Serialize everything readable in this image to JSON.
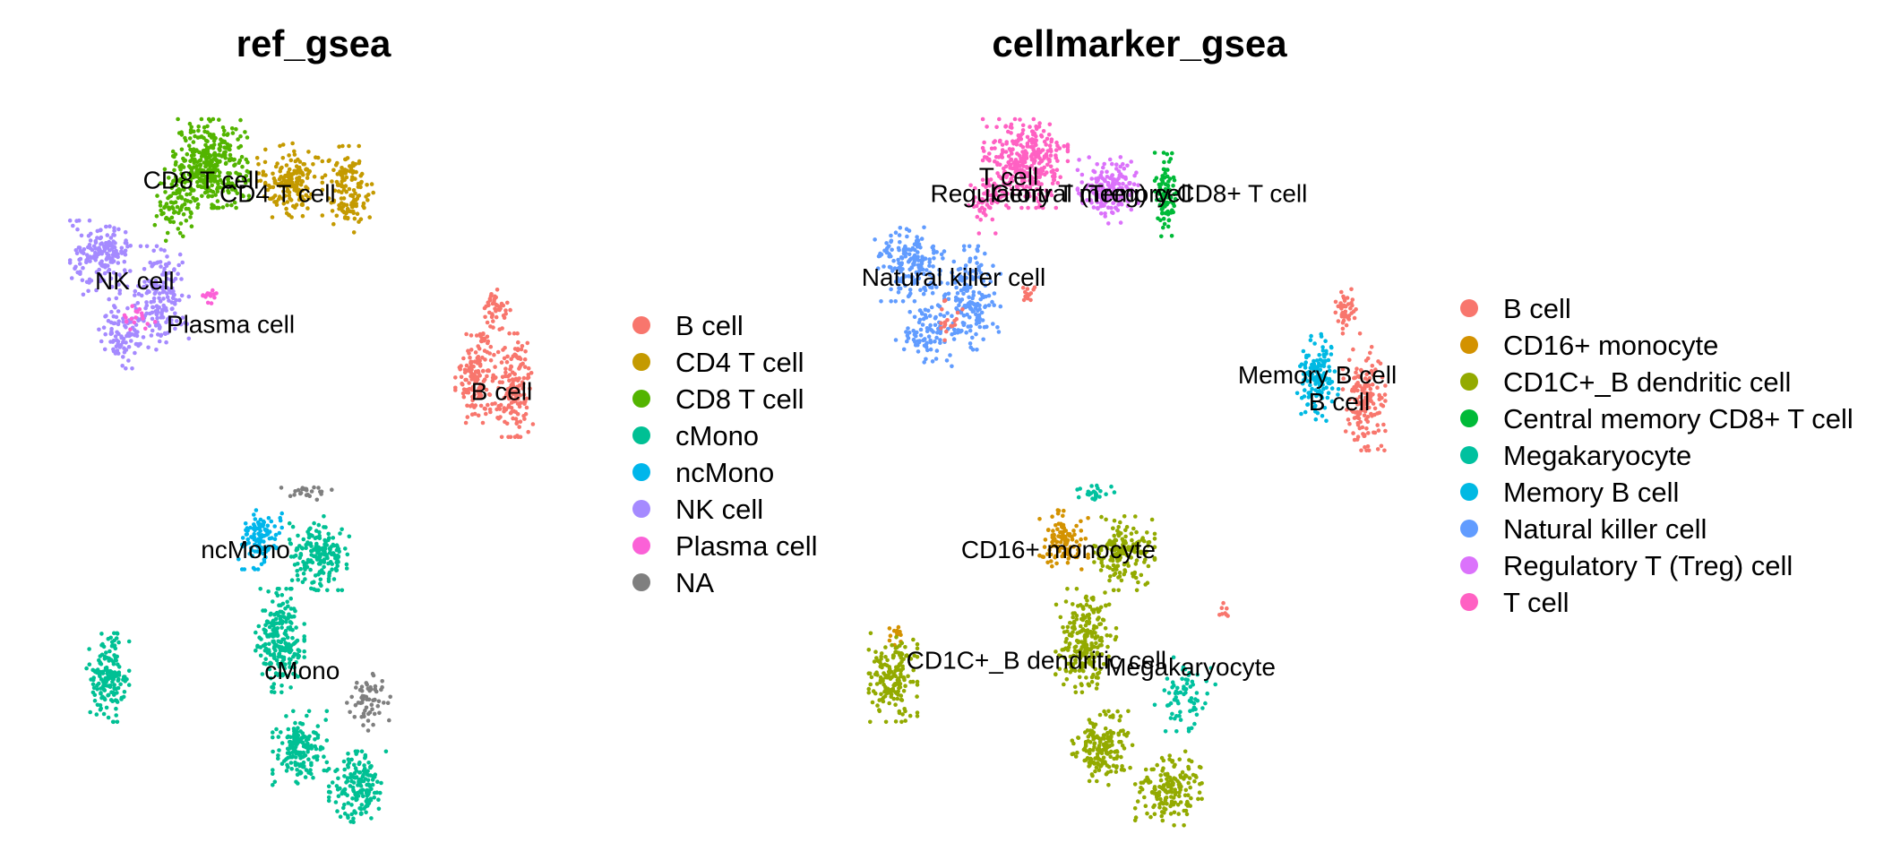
{
  "chart_data": [
    {
      "type": "scatter",
      "title": "ref_gsea",
      "legend_position": "right",
      "grid": false,
      "axes_visible": false,
      "legend": [
        {
          "name": "B cell",
          "color": "#F8766D"
        },
        {
          "name": "CD4 T cell",
          "color": "#C49A00"
        },
        {
          "name": "CD8 T cell",
          "color": "#53B400"
        },
        {
          "name": "cMono",
          "color": "#00C094"
        },
        {
          "name": "ncMono",
          "color": "#00B6EB"
        },
        {
          "name": "NK cell",
          "color": "#A58AFF"
        },
        {
          "name": "Plasma cell",
          "color": "#FB61D7"
        },
        {
          "name": "NA",
          "color": "#7F7F7F"
        }
      ],
      "cluster_labels": [
        {
          "text": "CD8 T cell",
          "x": 0.29,
          "y": 0.905
        },
        {
          "text": "CD4 T cell",
          "x": 0.445,
          "y": 0.885
        },
        {
          "text": "NK cell",
          "x": 0.155,
          "y": 0.755
        },
        {
          "text": "Plasma cell",
          "x": 0.35,
          "y": 0.69
        },
        {
          "text": "B cell",
          "x": 0.9,
          "y": 0.59
        },
        {
          "text": "ncMono",
          "x": 0.38,
          "y": 0.355
        },
        {
          "text": "cMono",
          "x": 0.495,
          "y": 0.175
        }
      ],
      "clusters": [
        {
          "label": "CD8 T cell",
          "cx": 0.31,
          "cy": 0.93,
          "rx": 0.07,
          "ry": 0.06,
          "n": 340,
          "color": "#53B400"
        },
        {
          "label": "CD8 T cell",
          "cx": 0.24,
          "cy": 0.87,
          "rx": 0.04,
          "ry": 0.05,
          "n": 90,
          "color": "#53B400"
        },
        {
          "label": "CD4 T cell",
          "cx": 0.47,
          "cy": 0.905,
          "rx": 0.06,
          "ry": 0.05,
          "n": 170,
          "color": "#C49A00"
        },
        {
          "label": "CD4 T cell",
          "cx": 0.59,
          "cy": 0.89,
          "rx": 0.045,
          "ry": 0.06,
          "n": 130,
          "color": "#C49A00"
        },
        {
          "label": "NK cell",
          "cx": 0.09,
          "cy": 0.79,
          "rx": 0.06,
          "ry": 0.05,
          "n": 170,
          "color": "#A58AFF"
        },
        {
          "label": "NK cell",
          "cx": 0.21,
          "cy": 0.73,
          "rx": 0.05,
          "ry": 0.07,
          "n": 160,
          "color": "#A58AFF"
        },
        {
          "label": "NK cell",
          "cx": 0.13,
          "cy": 0.68,
          "rx": 0.05,
          "ry": 0.05,
          "n": 90,
          "color": "#A58AFF"
        },
        {
          "label": "Plasma cell",
          "cx": 0.31,
          "cy": 0.735,
          "rx": 0.015,
          "ry": 0.012,
          "n": 14,
          "color": "#FB61D7"
        },
        {
          "label": "Plasma cell",
          "cx": 0.16,
          "cy": 0.705,
          "rx": 0.035,
          "ry": 0.02,
          "n": 18,
          "color": "#FB61D7"
        },
        {
          "label": "B cell",
          "cx": 0.85,
          "cy": 0.61,
          "rx": 0.04,
          "ry": 0.06,
          "n": 150,
          "color": "#F8766D"
        },
        {
          "label": "B cell",
          "cx": 0.925,
          "cy": 0.6,
          "rx": 0.035,
          "ry": 0.07,
          "n": 150,
          "color": "#F8766D"
        },
        {
          "label": "B cell",
          "cx": 0.89,
          "cy": 0.71,
          "rx": 0.025,
          "ry": 0.03,
          "n": 45,
          "color": "#F8766D"
        },
        {
          "label": "ncMono",
          "cx": 0.41,
          "cy": 0.37,
          "rx": 0.04,
          "ry": 0.04,
          "n": 110,
          "color": "#00B6EB"
        },
        {
          "label": "cMono",
          "cx": 0.53,
          "cy": 0.35,
          "rx": 0.055,
          "ry": 0.05,
          "n": 180,
          "color": "#00C094"
        },
        {
          "label": "cMono",
          "cx": 0.45,
          "cy": 0.22,
          "rx": 0.045,
          "ry": 0.07,
          "n": 230,
          "color": "#00C094"
        },
        {
          "label": "cMono",
          "cx": 0.49,
          "cy": 0.06,
          "rx": 0.05,
          "ry": 0.05,
          "n": 170,
          "color": "#00C094"
        },
        {
          "label": "cMono",
          "cx": 0.61,
          "cy": 0.0,
          "rx": 0.055,
          "ry": 0.05,
          "n": 170,
          "color": "#00C094"
        },
        {
          "label": "cMono",
          "cx": 0.1,
          "cy": 0.165,
          "rx": 0.04,
          "ry": 0.06,
          "n": 170,
          "color": "#00C094"
        },
        {
          "label": "NA",
          "cx": 0.63,
          "cy": 0.13,
          "rx": 0.04,
          "ry": 0.04,
          "n": 60,
          "color": "#7F7F7F"
        },
        {
          "label": "NA",
          "cx": 0.5,
          "cy": 0.44,
          "rx": 0.05,
          "ry": 0.01,
          "n": 25,
          "color": "#7F7F7F"
        }
      ]
    },
    {
      "type": "scatter",
      "title": "cellmarker_gsea",
      "legend_position": "right",
      "grid": false,
      "axes_visible": false,
      "legend": [
        {
          "name": "B cell",
          "color": "#F8766D"
        },
        {
          "name": "CD16+ monocyte",
          "color": "#D39200"
        },
        {
          "name": "CD1C+_B dendritic cell",
          "color": "#93AA00"
        },
        {
          "name": "Central memory CD8+ T cell",
          "color": "#00BA38"
        },
        {
          "name": "Megakaryocyte",
          "color": "#00C19F"
        },
        {
          "name": "Memory B cell",
          "color": "#00B9E3"
        },
        {
          "name": "Natural killer cell",
          "color": "#619CFF"
        },
        {
          "name": "Regulatory T (Treg) cell",
          "color": "#DB72FB"
        },
        {
          "name": "T cell",
          "color": "#FF61C3"
        }
      ],
      "cluster_labels": [
        {
          "text": "T cell",
          "x": 0.27,
          "y": 0.91
        },
        {
          "text": "Regulatory T (Treg) cell",
          "x": 0.365,
          "y": 0.885
        },
        {
          "text": "Central memory CD8+ T cell",
          "x": 0.525,
          "y": 0.885
        },
        {
          "text": "Natural killer cell",
          "x": 0.17,
          "y": 0.76
        },
        {
          "text": "Memory B cell",
          "x": 0.83,
          "y": 0.615
        },
        {
          "text": "B cell",
          "x": 0.87,
          "y": 0.575
        },
        {
          "text": "CD16+ monocyte",
          "x": 0.36,
          "y": 0.355
        },
        {
          "text": "CD1C+_B dendritic cell",
          "x": 0.32,
          "y": 0.19
        },
        {
          "text": "Megakaryocyte",
          "x": 0.6,
          "y": 0.18
        }
      ],
      "clusters": [
        {
          "label": "T cell",
          "cx": 0.3,
          "cy": 0.93,
          "rx": 0.07,
          "ry": 0.06,
          "n": 330,
          "color": "#FF61C3"
        },
        {
          "label": "T cell",
          "cx": 0.23,
          "cy": 0.87,
          "rx": 0.03,
          "ry": 0.04,
          "n": 50,
          "color": "#FF61C3"
        },
        {
          "label": "Regulatory T (Treg) cell",
          "cx": 0.45,
          "cy": 0.89,
          "rx": 0.05,
          "ry": 0.045,
          "n": 170,
          "color": "#DB72FB"
        },
        {
          "label": "Central memory CD8+ T cell",
          "cx": 0.555,
          "cy": 0.88,
          "rx": 0.018,
          "ry": 0.06,
          "n": 90,
          "color": "#00BA38"
        },
        {
          "label": "Natural killer cell",
          "cx": 0.09,
          "cy": 0.78,
          "rx": 0.06,
          "ry": 0.05,
          "n": 170,
          "color": "#619CFF"
        },
        {
          "label": "Natural killer cell",
          "cx": 0.2,
          "cy": 0.73,
          "rx": 0.05,
          "ry": 0.07,
          "n": 170,
          "color": "#619CFF"
        },
        {
          "label": "Natural killer cell",
          "cx": 0.12,
          "cy": 0.68,
          "rx": 0.05,
          "ry": 0.05,
          "n": 90,
          "color": "#619CFF"
        },
        {
          "label": "B cell",
          "cx": 0.305,
          "cy": 0.74,
          "rx": 0.015,
          "ry": 0.012,
          "n": 14,
          "color": "#F8766D"
        },
        {
          "label": "B cell",
          "cx": 0.16,
          "cy": 0.7,
          "rx": 0.03,
          "ry": 0.03,
          "n": 18,
          "color": "#F8766D"
        },
        {
          "label": "Memory B cell",
          "cx": 0.83,
          "cy": 0.61,
          "rx": 0.035,
          "ry": 0.06,
          "n": 140,
          "color": "#00B9E3"
        },
        {
          "label": "B cell",
          "cx": 0.915,
          "cy": 0.58,
          "rx": 0.035,
          "ry": 0.07,
          "n": 150,
          "color": "#F8766D"
        },
        {
          "label": "B cell",
          "cx": 0.88,
          "cy": 0.71,
          "rx": 0.025,
          "ry": 0.03,
          "n": 45,
          "color": "#F8766D"
        },
        {
          "label": "CD16+ monocyte",
          "cx": 0.37,
          "cy": 0.37,
          "rx": 0.04,
          "ry": 0.04,
          "n": 110,
          "color": "#D39200"
        },
        {
          "label": "CD16+ monocyte",
          "cx": 0.07,
          "cy": 0.23,
          "rx": 0.015,
          "ry": 0.02,
          "n": 12,
          "color": "#D39200"
        },
        {
          "label": "CD1C+_B dendritic cell",
          "cx": 0.48,
          "cy": 0.35,
          "rx": 0.05,
          "ry": 0.05,
          "n": 170,
          "color": "#93AA00"
        },
        {
          "label": "CD1C+_B dendritic cell",
          "cx": 0.41,
          "cy": 0.22,
          "rx": 0.05,
          "ry": 0.07,
          "n": 230,
          "color": "#93AA00"
        },
        {
          "label": "CD1C+_B dendritic cell",
          "cx": 0.44,
          "cy": 0.06,
          "rx": 0.05,
          "ry": 0.05,
          "n": 170,
          "color": "#93AA00"
        },
        {
          "label": "CD1C+_B dendritic cell",
          "cx": 0.56,
          "cy": 0.0,
          "rx": 0.055,
          "ry": 0.05,
          "n": 170,
          "color": "#93AA00"
        },
        {
          "label": "CD1C+_B dendritic cell",
          "cx": 0.06,
          "cy": 0.165,
          "rx": 0.04,
          "ry": 0.06,
          "n": 170,
          "color": "#93AA00"
        },
        {
          "label": "Megakaryocyte",
          "cx": 0.59,
          "cy": 0.14,
          "rx": 0.05,
          "ry": 0.05,
          "n": 70,
          "color": "#00C19F"
        },
        {
          "label": "Megakaryocyte",
          "cx": 0.42,
          "cy": 0.44,
          "rx": 0.04,
          "ry": 0.01,
          "n": 25,
          "color": "#00C19F"
        },
        {
          "label": "B cell",
          "cx": 0.66,
          "cy": 0.26,
          "rx": 0.01,
          "ry": 0.02,
          "n": 8,
          "color": "#F8766D"
        }
      ]
    }
  ]
}
